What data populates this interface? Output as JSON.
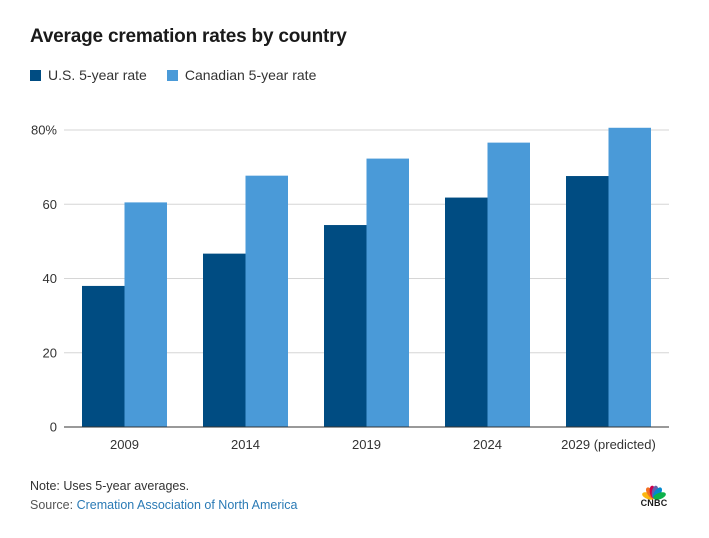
{
  "chart_data": {
    "type": "bar",
    "title": "Average cremation rates by country",
    "categories": [
      "2009",
      "2014",
      "2019",
      "2024",
      "2029 (predicted)"
    ],
    "series": [
      {
        "name": "U.S. 5-year rate",
        "color": "#004c82",
        "values": [
          38,
          46.7,
          54.4,
          61.8,
          67.6
        ]
      },
      {
        "name": "Canadian 5-year rate",
        "color": "#4a9ad8",
        "values": [
          60.5,
          67.7,
          72.3,
          76.6,
          80.6
        ]
      }
    ],
    "y_ticks": [
      {
        "value": 0,
        "label": "0"
      },
      {
        "value": 20,
        "label": "20"
      },
      {
        "value": 40,
        "label": "40"
      },
      {
        "value": 60,
        "label": "60"
      },
      {
        "value": 80,
        "label": "80%"
      }
    ],
    "ylim": [
      0,
      80
    ],
    "grid": true,
    "xlabel": "",
    "ylabel": "",
    "legend_position": "top-left"
  },
  "footer": {
    "note": "Note: Uses 5-year averages.",
    "source_prefix": "Source: ",
    "source_name": "Cremation Association of North America"
  },
  "brand": {
    "logo_text": "CNBC",
    "peacock_colors": [
      "#fcb711",
      "#f37021",
      "#cc004c",
      "#6460aa",
      "#0089d0",
      "#0db14b"
    ]
  }
}
